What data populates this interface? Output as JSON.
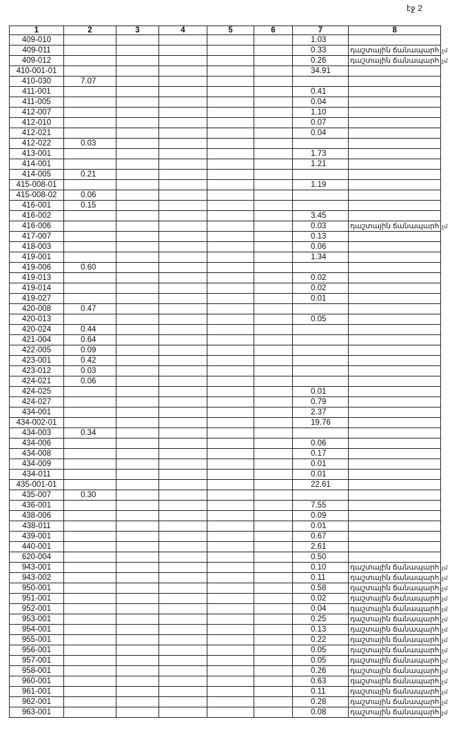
{
  "page_label": "էջ 2",
  "headers": [
    "1",
    "2",
    "3",
    "4",
    "5",
    "6",
    "7",
    "8"
  ],
  "note_text": "դաշտային ճանապարհ",
  "note_suffix": "չմ",
  "rows": [
    [
      "409-010",
      "",
      "1.03",
      ""
    ],
    [
      "409-011",
      "",
      "0.33",
      "դաշտային ճանապարհ"
    ],
    [
      "409-012",
      "",
      "0.26",
      "դաշտային ճանապարհ"
    ],
    [
      "410-001-01",
      "",
      "34.91",
      ""
    ],
    [
      "410-030",
      "7.07",
      "",
      ""
    ],
    [
      "411-001",
      "",
      "0.41",
      ""
    ],
    [
      "411-005",
      "",
      "0.04",
      ""
    ],
    [
      "412-007",
      "",
      "1.10",
      ""
    ],
    [
      "412-010",
      "",
      "0.07",
      ""
    ],
    [
      "412-021",
      "",
      "0.04",
      ""
    ],
    [
      "412-022",
      "0.03",
      "",
      ""
    ],
    [
      "413-001",
      "",
      "1.73",
      ""
    ],
    [
      "414-001",
      "",
      "1.21",
      ""
    ],
    [
      "414-005",
      "0.21",
      "",
      ""
    ],
    [
      "415-008-01",
      "",
      "1.19",
      ""
    ],
    [
      "415-008-02",
      "0.06",
      "",
      ""
    ],
    [
      "416-001",
      "0.15",
      "",
      ""
    ],
    [
      "416-002",
      "",
      "3.45",
      ""
    ],
    [
      "416-006",
      "",
      "0.03",
      "դաշտային ճանապարհ"
    ],
    [
      "417-007",
      "",
      "0.13",
      ""
    ],
    [
      "418-003",
      "",
      "0.06",
      ""
    ],
    [
      "419-001",
      "",
      "1.34",
      ""
    ],
    [
      "419-006",
      "0.60",
      "",
      ""
    ],
    [
      "419-013",
      "",
      "0.02",
      ""
    ],
    [
      "419-014",
      "",
      "0.02",
      ""
    ],
    [
      "419-027",
      "",
      "0.01",
      ""
    ],
    [
      "420-008",
      "0.47",
      "",
      ""
    ],
    [
      "420-013",
      "",
      "0.05",
      ""
    ],
    [
      "420-024",
      "0.44",
      "",
      ""
    ],
    [
      "421-004",
      "0.64",
      "",
      ""
    ],
    [
      "422-005",
      "0.09",
      "",
      ""
    ],
    [
      "423-001",
      "0.42",
      "",
      ""
    ],
    [
      "423-012",
      "0.03",
      "",
      ""
    ],
    [
      "424-021",
      "0.06",
      "",
      ""
    ],
    [
      "424-025",
      "",
      "0.01",
      ""
    ],
    [
      "424-027",
      "",
      "0.79",
      ""
    ],
    [
      "434-001",
      "",
      "2.37",
      ""
    ],
    [
      "434-002-01",
      "",
      "19.76",
      ""
    ],
    [
      "434-003",
      "0.34",
      "",
      ""
    ],
    [
      "434-006",
      "",
      "0.06",
      ""
    ],
    [
      "434-008",
      "",
      "0.17",
      ""
    ],
    [
      "434-009",
      "",
      "0.01",
      ""
    ],
    [
      "434-011",
      "",
      "0.01",
      ""
    ],
    [
      "435-001-01",
      "",
      "22.61",
      ""
    ],
    [
      "435-007",
      "0.30",
      "",
      ""
    ],
    [
      "436-001",
      "",
      "7.55",
      ""
    ],
    [
      "438-006",
      "",
      "0.09",
      ""
    ],
    [
      "438-011",
      "",
      "0.01",
      ""
    ],
    [
      "439-001",
      "",
      "0.67",
      ""
    ],
    [
      "440-001",
      "",
      "2.61",
      ""
    ],
    [
      "620-004",
      "",
      "0.50",
      ""
    ],
    [
      "943-001",
      "",
      "0.10",
      "դաշտային ճանապարհ"
    ],
    [
      "943-002",
      "",
      "0.11",
      "դաշտային ճանապարհ"
    ],
    [
      "950-001",
      "",
      "0.58",
      "դաշտային ճանապարհ"
    ],
    [
      "951-001",
      "",
      "0.02",
      "դաշտային ճանապարհ"
    ],
    [
      "952-001",
      "",
      "0.04",
      "դաշտային ճանապարհ"
    ],
    [
      "953-001",
      "",
      "0.25",
      "դաշտային ճանապարհ"
    ],
    [
      "954-001",
      "",
      "0.13",
      "դաշտային ճանապարհ"
    ],
    [
      "955-001",
      "",
      "0.22",
      "դաշտային ճանապարհ"
    ],
    [
      "956-001",
      "",
      "0.05",
      "դաշտային ճանապարհ"
    ],
    [
      "957-001",
      "",
      "0.05",
      "դաշտային ճանապարհ"
    ],
    [
      "958-001",
      "",
      "0.26",
      "դաշտային ճանապարհ"
    ],
    [
      "960-001",
      "",
      "0.63",
      "դաշտային ճանապարհ"
    ],
    [
      "961-001",
      "",
      "0.11",
      "դաշտային ճանապարհ"
    ],
    [
      "962-001",
      "",
      "0.28",
      "դաշտային ճանապարհ"
    ],
    [
      "963-001",
      "",
      "0.08",
      "դաշտային ճանապարհ"
    ]
  ]
}
